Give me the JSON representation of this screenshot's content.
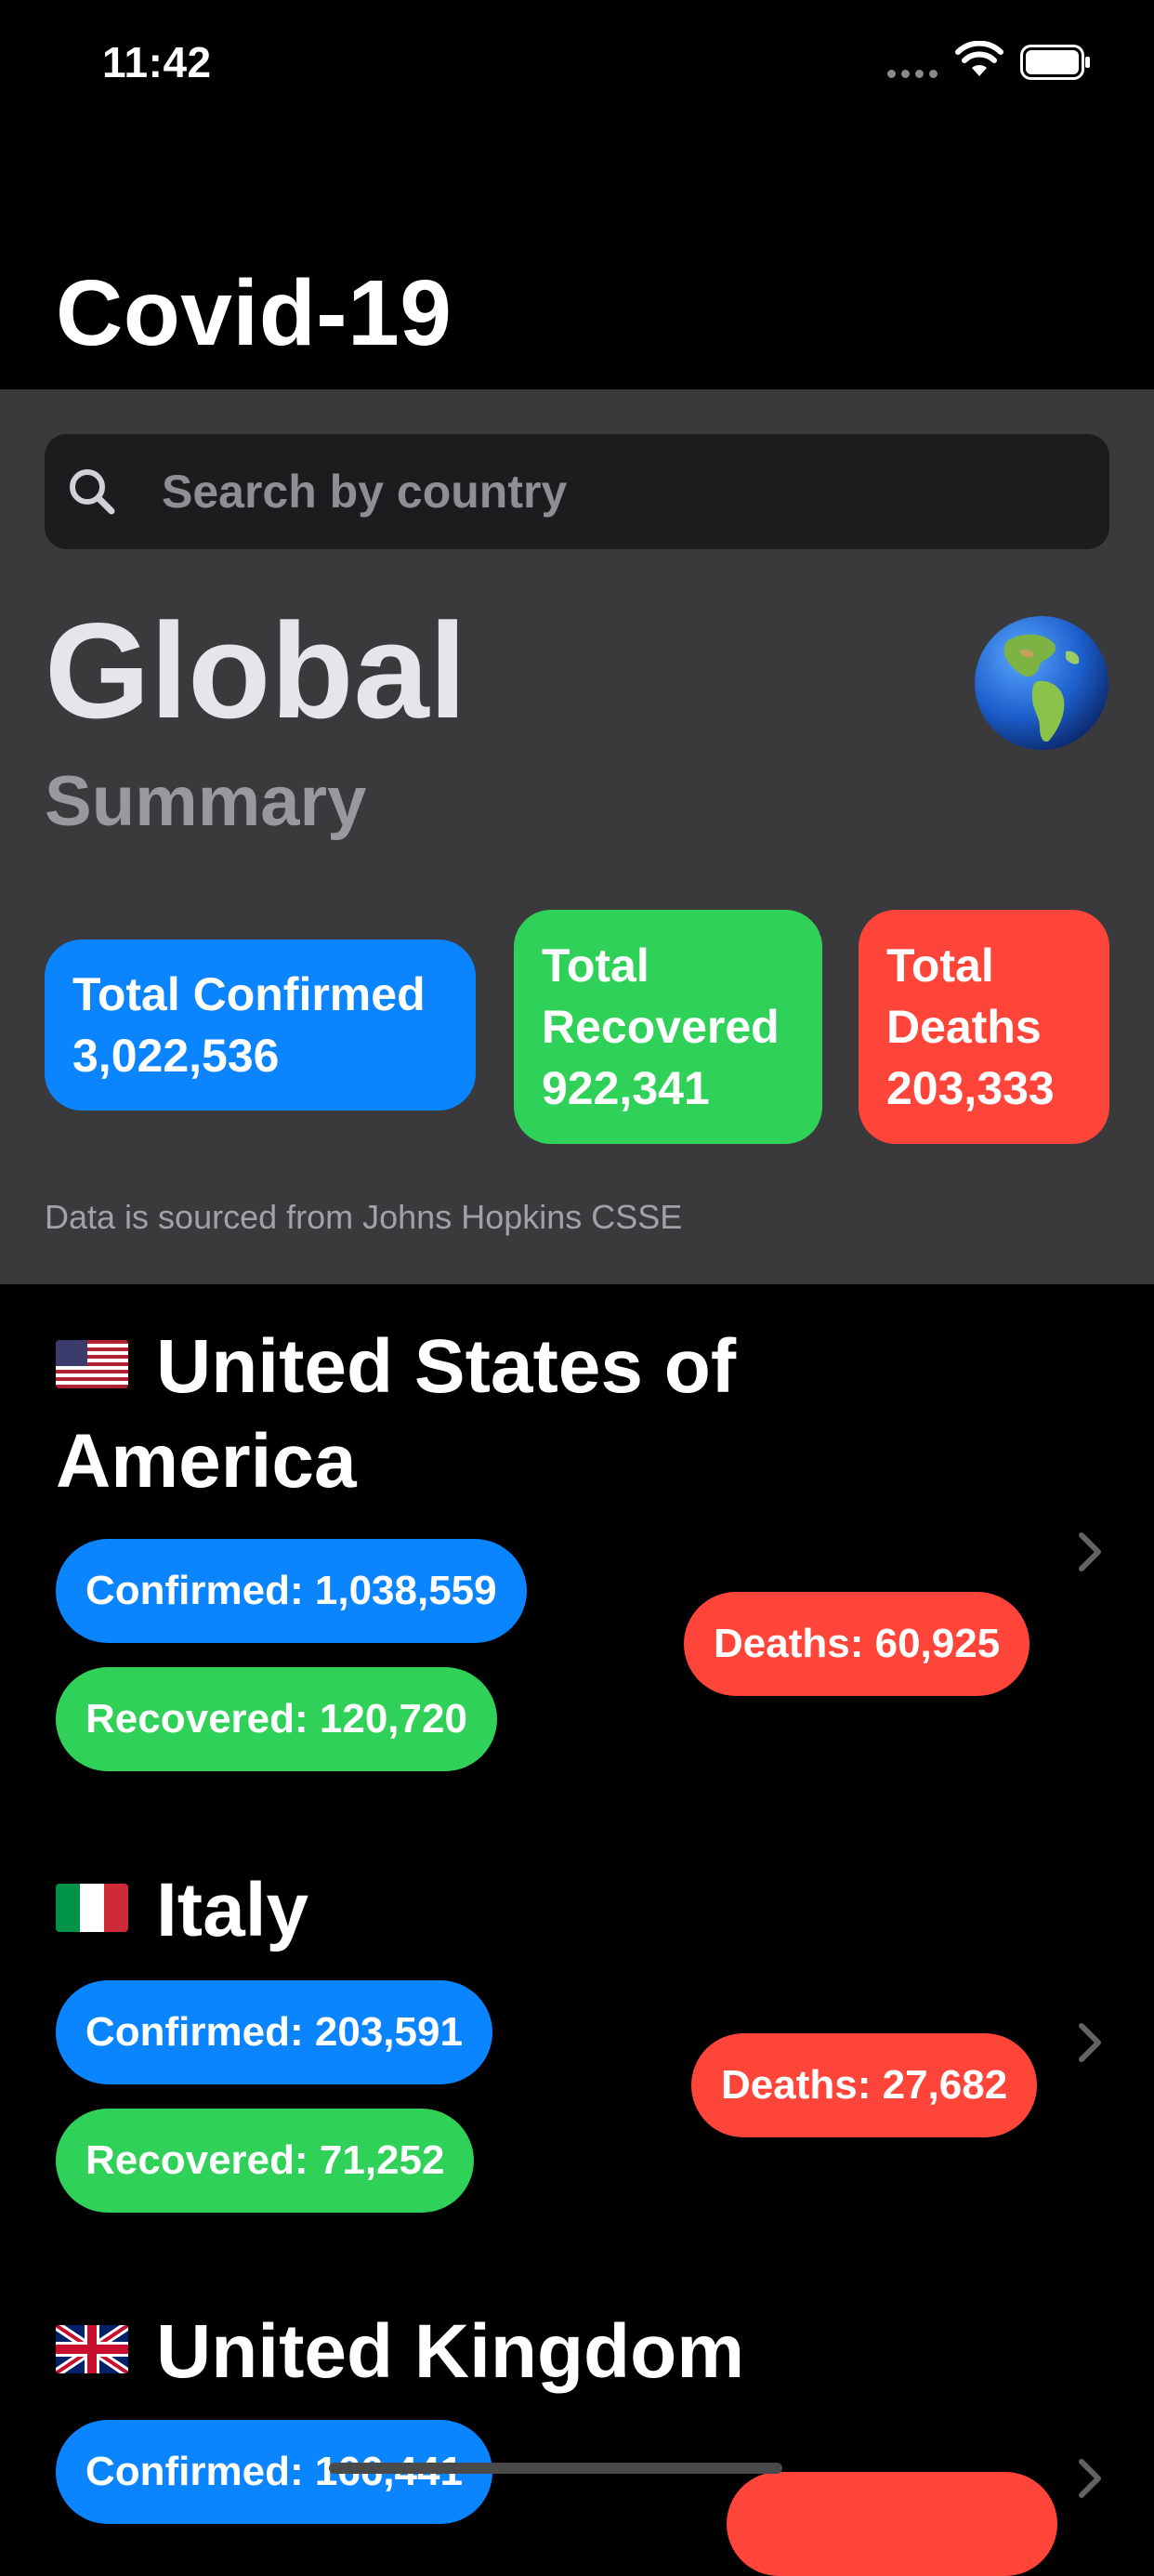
{
  "status_bar": {
    "time": "11:42"
  },
  "app": {
    "title": "Covid-19"
  },
  "search": {
    "placeholder": "Search by country",
    "value": ""
  },
  "summary": {
    "heading": "Global",
    "subheading": "Summary",
    "globe_icon": "globe-americas-icon",
    "confirmed_label": "Total Confirmed",
    "confirmed_value": "3,022,536",
    "recovered_label_line1": "Total",
    "recovered_label_line2": "Recovered",
    "recovered_value": "922,341",
    "deaths_label_line1": "Total",
    "deaths_label_line2": "Deaths",
    "deaths_value": "203,333",
    "source_note": "Data is sourced from Johns Hopkins CSSE"
  },
  "countries": [
    {
      "flag_icon": "us-flag-icon",
      "name_line1": "United States of",
      "name_line2": "America",
      "confirmed": "Confirmed: 1,038,559",
      "recovered": "Recovered: 120,720",
      "deaths": "Deaths: 60,925"
    },
    {
      "flag_icon": "italy-flag-icon",
      "name_line1": "Italy",
      "confirmed": "Confirmed: 203,591",
      "recovered": "Recovered: 71,252",
      "deaths": "Deaths: 27,682"
    },
    {
      "flag_icon": "uk-flag-icon",
      "name_line1": "United Kingdom",
      "confirmed": "Confirmed: 166,441"
    }
  ],
  "colors": {
    "confirmed": "#0a84ff",
    "recovered": "#30d158",
    "deaths": "#ff453a",
    "panel": "#3a3a3c",
    "background": "#000000"
  }
}
